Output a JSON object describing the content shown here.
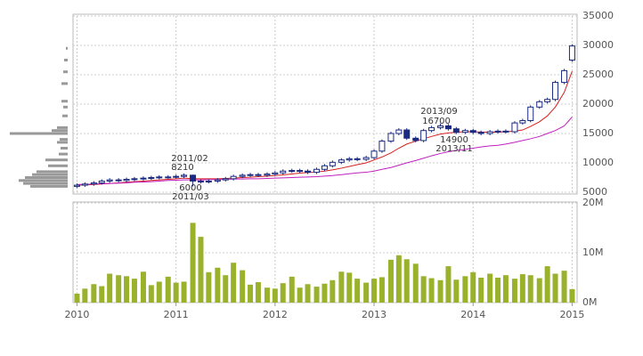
{
  "chart_data": [
    {
      "type": "candlestick",
      "x": [
        2010.0,
        2010.08,
        2010.17,
        2010.25,
        2010.33,
        2010.42,
        2010.5,
        2010.58,
        2010.67,
        2010.75,
        2010.83,
        2010.92,
        2011.0,
        2011.08,
        2011.17,
        2011.25,
        2011.33,
        2011.42,
        2011.5,
        2011.58,
        2011.67,
        2011.75,
        2011.83,
        2011.92,
        2012.0,
        2012.08,
        2012.17,
        2012.25,
        2012.33,
        2012.42,
        2012.5,
        2012.58,
        2012.67,
        2012.75,
        2012.83,
        2012.92,
        2013.0,
        2013.08,
        2013.17,
        2013.25,
        2013.33,
        2013.42,
        2013.5,
        2013.58,
        2013.67,
        2013.75,
        2013.83,
        2013.92,
        2014.0,
        2014.08,
        2014.17,
        2014.25,
        2014.33,
        2014.42,
        2014.5,
        2014.58,
        2014.67,
        2014.75,
        2014.83,
        2014.92,
        2015.0
      ],
      "open": [
        6000,
        6200,
        6400,
        6600,
        6900,
        7100,
        7000,
        7200,
        7300,
        7400,
        7500,
        7600,
        7600,
        7700,
        7900,
        6900,
        6800,
        6900,
        7100,
        7300,
        7700,
        7900,
        8000,
        7900,
        8100,
        8300,
        8600,
        8700,
        8600,
        8400,
        8900,
        9500,
        10100,
        10500,
        10700,
        10600,
        10900,
        12000,
        13700,
        15000,
        15600,
        14200,
        13800,
        15500,
        16000,
        16300,
        15800,
        15200,
        15500,
        15200,
        15000,
        15300,
        15400,
        15300,
        16800,
        17200,
        19500,
        20400,
        20800,
        23700,
        27500
      ],
      "high": [
        6500,
        6700,
        6900,
        7200,
        7400,
        7400,
        7500,
        7600,
        7700,
        7800,
        7900,
        7900,
        8000,
        8210,
        8000,
        7200,
        7200,
        7400,
        7600,
        8000,
        8200,
        8300,
        8300,
        8400,
        8600,
        8900,
        9000,
        9000,
        8900,
        9200,
        9800,
        10400,
        10800,
        11000,
        11000,
        11200,
        12300,
        14000,
        15300,
        15900,
        15900,
        14500,
        15800,
        16300,
        16700,
        16600,
        16100,
        15800,
        15800,
        15500,
        15600,
        15700,
        15700,
        17100,
        17500,
        19800,
        20700,
        21100,
        24000,
        26000,
        30200
      ],
      "low": [
        5700,
        5900,
        6100,
        6300,
        6600,
        6700,
        6700,
        6900,
        7000,
        7100,
        7200,
        7300,
        7300,
        7400,
        6000,
        6500,
        6500,
        6600,
        6800,
        7000,
        7400,
        7600,
        7600,
        7600,
        7800,
        8000,
        8300,
        8300,
        8100,
        8100,
        8600,
        9200,
        9800,
        10200,
        10300,
        10300,
        10600,
        11700,
        13400,
        14700,
        13900,
        13500,
        13500,
        15200,
        15700,
        15500,
        14900,
        14900,
        14900,
        14700,
        14700,
        15000,
        15000,
        15000,
        16500,
        16900,
        19200,
        20100,
        20500,
        23400,
        27200
      ],
      "close": [
        6200,
        6400,
        6600,
        6900,
        7100,
        7000,
        7200,
        7300,
        7400,
        7500,
        7600,
        7600,
        7700,
        7900,
        6900,
        6800,
        6900,
        7100,
        7300,
        7700,
        7900,
        8000,
        7900,
        8100,
        8300,
        8600,
        8700,
        8600,
        8400,
        8900,
        9500,
        10100,
        10500,
        10700,
        10600,
        10900,
        12000,
        13700,
        15000,
        15600,
        14200,
        13800,
        15500,
        16000,
        16300,
        15800,
        15200,
        15500,
        15200,
        15000,
        15300,
        15400,
        15300,
        16800,
        17200,
        19500,
        20400,
        20800,
        23700,
        25700,
        29900
      ],
      "moving_averages": [
        {
          "color": "#d62020",
          "values": [
            6200,
            6250,
            6300,
            6400,
            6500,
            6600,
            6700,
            6800,
            6900,
            7000,
            7100,
            7200,
            7300,
            7400,
            7300,
            7300,
            7300,
            7300,
            7350,
            7400,
            7500,
            7550,
            7650,
            7750,
            7850,
            7950,
            8100,
            8250,
            8350,
            8450,
            8600,
            8800,
            9100,
            9400,
            9700,
            10000,
            10500,
            11000,
            11700,
            12500,
            13200,
            13700,
            14100,
            14500,
            14900,
            15100,
            15200,
            15300,
            15300,
            15250,
            15200,
            15250,
            15300,
            15400,
            15600,
            16200,
            17000,
            18000,
            19500,
            22000,
            25600
          ]
        },
        {
          "color": "#c020c0",
          "values": [
            6300,
            6350,
            6400,
            6450,
            6500,
            6550,
            6600,
            6700,
            6750,
            6800,
            6900,
            7000,
            7050,
            7100,
            7100,
            7100,
            7150,
            7150,
            7200,
            7250,
            7250,
            7300,
            7300,
            7350,
            7400,
            7450,
            7500,
            7550,
            7600,
            7650,
            7750,
            7850,
            8000,
            8150,
            8300,
            8400,
            8600,
            8900,
            9200,
            9600,
            10000,
            10400,
            10800,
            11200,
            11600,
            11900,
            12100,
            12300,
            12500,
            12700,
            12900,
            13000,
            13200,
            13500,
            13800,
            14100,
            14500,
            15000,
            15500,
            16300,
            17800
          ]
        }
      ],
      "up_color": "#1a2a80",
      "down_color": "#1a2a80",
      "ylim": [
        5000,
        35000
      ],
      "yticks": [
        5000,
        10000,
        15000,
        20000,
        25000,
        30000,
        35000
      ],
      "xlim": [
        2009.96,
        2015.05
      ],
      "xticks": [
        2010,
        2011,
        2012,
        2013,
        2014,
        2015
      ],
      "grid": true,
      "annotations": [
        "2011/02",
        "8210",
        "6000",
        "2011/03",
        "2013/09",
        "16700",
        "14900",
        "2013/11"
      ],
      "volume_profile": {
        "color": "#999999",
        "prices": [
          6000,
          6500,
          7000,
          7500,
          8000,
          8500,
          9500,
          10500,
          11500,
          12500,
          13500,
          14000,
          15000,
          15500,
          16000,
          18000,
          19500,
          20500,
          23500,
          25500,
          27500,
          29500
        ],
        "values": [
          42,
          50,
          55,
          48,
          40,
          35,
          22,
          25,
          10,
          8,
          12,
          9,
          65,
          18,
          12,
          6,
          5,
          7,
          7,
          5,
          4,
          2
        ]
      }
    },
    {
      "type": "bar",
      "color": "#9ab12c",
      "values": [
        1.8,
        2.8,
        3.7,
        3.3,
        5.8,
        5.5,
        5.3,
        4.8,
        6.2,
        3.5,
        4.2,
        5.2,
        4.0,
        4.2,
        16.0,
        13.2,
        6.1,
        7.0,
        5.5,
        8.0,
        6.5,
        3.6,
        4.1,
        3.0,
        2.8,
        3.9,
        5.2,
        3.0,
        3.7,
        3.2,
        3.8,
        4.5,
        6.2,
        6.0,
        4.8,
        4.0,
        4.8,
        5.1,
        8.6,
        9.5,
        8.7,
        7.8,
        5.3,
        4.9,
        4.5,
        7.3,
        4.6,
        5.3,
        6.1,
        5.0,
        5.8,
        5.0,
        5.5,
        4.8,
        5.7,
        5.5,
        4.9,
        7.3,
        5.8,
        6.4,
        2.7
      ],
      "ylim": [
        0,
        20
      ],
      "yticks": [
        {
          "value": 0,
          "label": "0M"
        },
        {
          "value": 10,
          "label": "10M"
        },
        {
          "value": 20,
          "label": "20M"
        }
      ],
      "xticks": [
        2010,
        2011,
        2012,
        2013,
        2014,
        2015
      ],
      "grid": true
    }
  ]
}
